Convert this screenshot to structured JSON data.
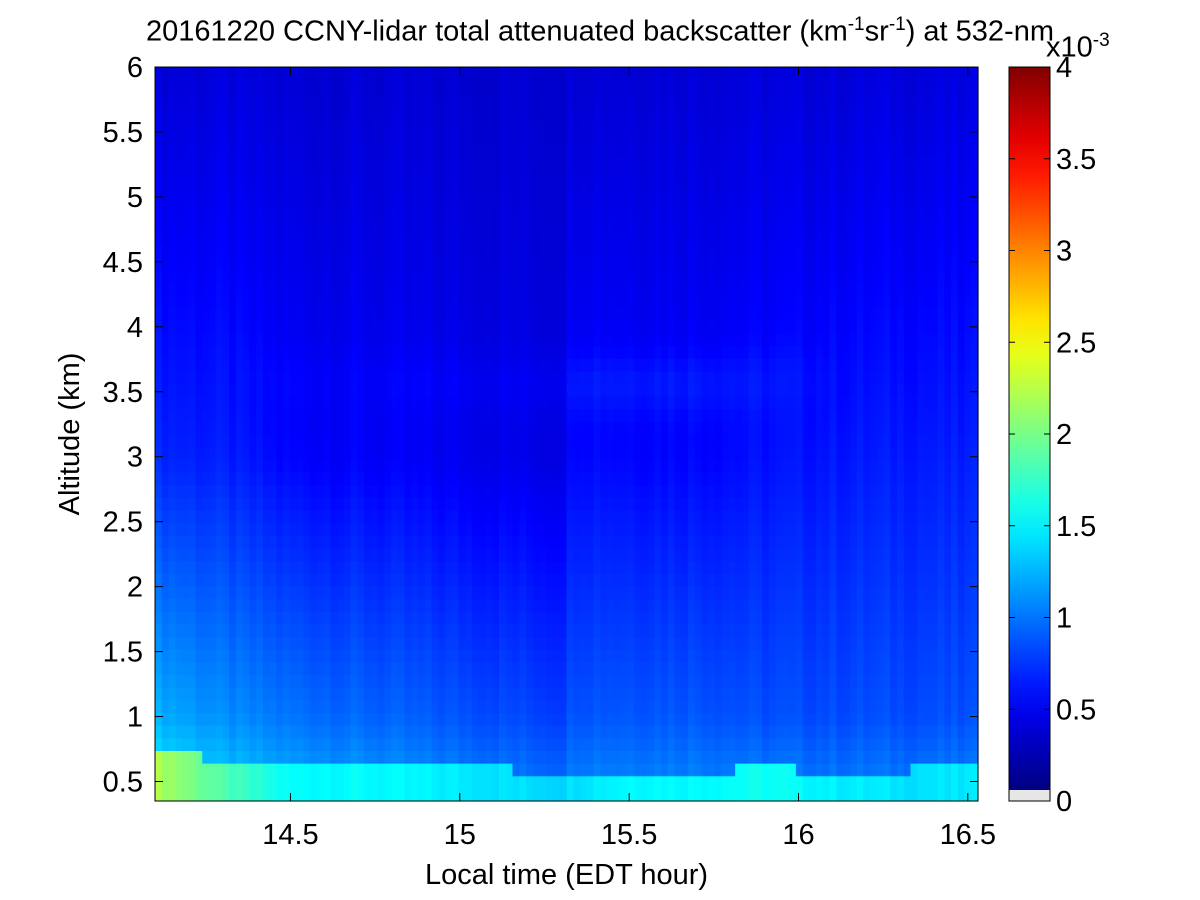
{
  "chart_data": {
    "type": "heatmap",
    "title": {
      "prefix": "20161220 CCNY-lidar total attenuated backscatter (km",
      "sup1": "-1",
      "mid": "sr",
      "sup2": "-1",
      "suffix": ") at 532-nm"
    },
    "xlabel": "Local time (EDT hour)",
    "ylabel": "Altitude (km)",
    "xlim": [
      14.1,
      16.53
    ],
    "ylim": [
      0.35,
      6.0
    ],
    "x_ticks": [
      "14.5",
      "15",
      "15.5",
      "16",
      "16.5"
    ],
    "x_tick_values": [
      14.5,
      15.0,
      15.5,
      16.0,
      16.5
    ],
    "y_ticks": [
      "0.5",
      "1",
      "1.5",
      "2",
      "2.5",
      "3",
      "3.5",
      "4",
      "4.5",
      "5",
      "5.5",
      "6"
    ],
    "y_tick_values": [
      0.5,
      1.0,
      1.5,
      2.0,
      2.5,
      3.0,
      3.5,
      4.0,
      4.5,
      5.0,
      5.5,
      6.0
    ],
    "colormap": "jet",
    "colorbar": {
      "range": [
        0,
        4
      ],
      "ticks": [
        "0",
        "0.5",
        "1",
        "1.5",
        "2",
        "2.5",
        "3",
        "3.5",
        "4"
      ],
      "tick_values": [
        0,
        0.5,
        1.0,
        1.5,
        2.0,
        2.5,
        3.0,
        3.5,
        4.0
      ],
      "multiplier_base": "x10",
      "multiplier_exp": "-3"
    },
    "field": {
      "description_units": "x10^-3 km^-1 sr^-1",
      "time_columns": [
        14.1,
        14.3,
        14.5,
        14.7,
        14.9,
        15.1,
        15.3,
        15.34,
        15.5,
        15.7,
        15.9,
        16.1,
        16.3,
        16.53
      ],
      "boundary_layer_top_km": [
        0.72,
        0.68,
        0.64,
        0.65,
        0.62,
        0.6,
        0.58,
        0.58,
        0.56,
        0.57,
        0.61,
        0.57,
        0.59,
        0.61
      ],
      "near_surface_value": [
        2.2,
        1.8,
        1.5,
        1.5,
        1.45,
        1.4,
        1.35,
        1.4,
        1.5,
        1.5,
        1.55,
        1.45,
        1.4,
        1.4
      ],
      "lower_tropo_value_1km": [
        1.2,
        1.05,
        0.95,
        0.9,
        0.85,
        0.8,
        0.75,
        0.85,
        0.85,
        0.85,
        0.8,
        0.8,
        0.8,
        0.8
      ],
      "mid_tropo_value_3km": [
        0.65,
        0.6,
        0.5,
        0.48,
        0.45,
        0.42,
        0.4,
        0.55,
        0.52,
        0.52,
        0.55,
        0.58,
        0.6,
        0.6
      ],
      "upper_value_6km": [
        0.35,
        0.35,
        0.33,
        0.33,
        0.32,
        0.32,
        0.32,
        0.35,
        0.35,
        0.35,
        0.35,
        0.35,
        0.36,
        0.36
      ],
      "layer_3_5km_value": [
        0.55,
        0.55,
        0.5,
        0.48,
        0.48,
        0.45,
        0.45,
        0.62,
        0.6,
        0.6,
        0.58,
        0.55,
        0.52,
        0.5
      ]
    }
  }
}
